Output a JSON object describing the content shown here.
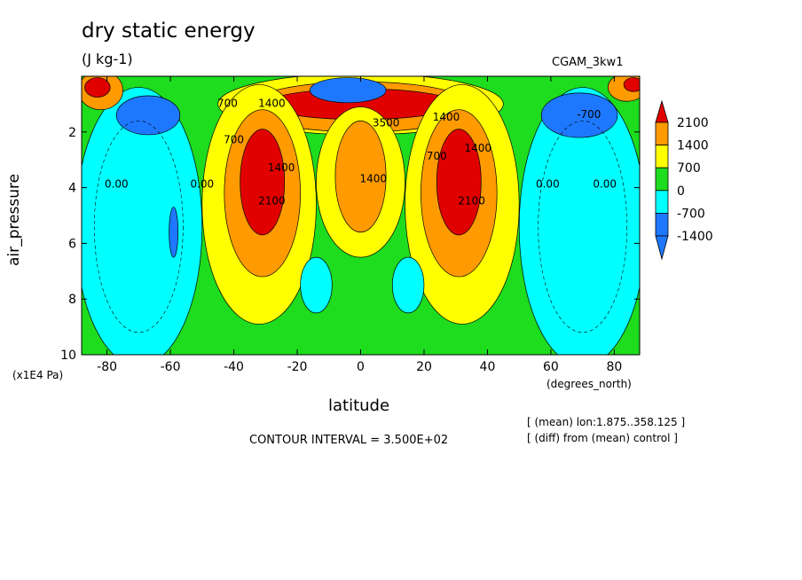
{
  "header": {
    "title": "dry static energy",
    "units": "(J kg-1)",
    "run_id": "CGAM_3kw1"
  },
  "footer": {
    "contour_interval": "CONTOUR INTERVAL = 3.500E+02",
    "note_mean": "[ (mean) lon:1.875..358.125 ]",
    "note_diff": "[ (diff) from (mean) control ]"
  },
  "axes": {
    "x_label": "latitude",
    "x_units": "(degrees_north)",
    "y_label": "air_pressure",
    "y_scale": "(x1E4 Pa)"
  },
  "colors": {
    "below_-1400": "#1e78ff",
    "-1400_-700": "#1e78ff",
    "-700_0": "#00ffff",
    "0_700": "#1edc1e",
    "700_1400": "#ffff00",
    "1400_2100": "#ff9a00",
    "above_2100": "#e10000"
  },
  "chart_data": {
    "type": "heatmap",
    "title": "dry static energy",
    "subtitle": "(J kg-1)",
    "xlabel": "latitude",
    "ylabel": "air_pressure",
    "xlim": [
      -88,
      88
    ],
    "ylim": [
      0,
      10
    ],
    "y_inverted": true,
    "x_ticks": [
      -80,
      -60,
      -40,
      -20,
      0,
      20,
      40,
      60,
      80
    ],
    "y_ticks": [
      2,
      4,
      6,
      8,
      10
    ],
    "colorbar": {
      "levels": [
        -1400,
        -700,
        0,
        700,
        1400,
        2100
      ],
      "labels": [
        "2100",
        "1400",
        "700",
        "0",
        "-700",
        "-1400"
      ],
      "colors": [
        "#1e78ff",
        "#00ffff",
        "#1edc1e",
        "#ffff00",
        "#ff9a00"
      ],
      "extend_low": "#1e78ff",
      "extend_high": "#e10000"
    },
    "contour_labels": [
      {
        "text": "700",
        "x": -42,
        "y": 1.1
      },
      {
        "text": "1400",
        "x": -28,
        "y": 1.1
      },
      {
        "text": "3500",
        "x": 8,
        "y": 1.8
      },
      {
        "text": "1400",
        "x": 27,
        "y": 1.6
      },
      {
        "text": "1400",
        "x": 37,
        "y": 2.7
      },
      {
        "text": "700",
        "x": -40,
        "y": 2.4
      },
      {
        "text": "1400",
        "x": -25,
        "y": 3.4
      },
      {
        "text": "2100",
        "x": -28,
        "y": 4.6
      },
      {
        "text": "1400",
        "x": 4,
        "y": 3.8
      },
      {
        "text": "700",
        "x": 24,
        "y": 3.0
      },
      {
        "text": "2100",
        "x": 35,
        "y": 4.6
      },
      {
        "text": "-700",
        "x": 72,
        "y": 1.5
      },
      {
        "text": "0.00",
        "x": -77,
        "y": 4.0
      },
      {
        "text": "0.00",
        "x": -50,
        "y": 4.0
      },
      {
        "text": "0.00",
        "x": 59,
        "y": 4.0
      },
      {
        "text": "0.00",
        "x": 77,
        "y": 4.0
      }
    ],
    "regions": [
      {
        "level": "700_1400",
        "cx": 0,
        "cy": 1.0,
        "rx": 45,
        "ry": 1.1
      },
      {
        "level": "1400_2100",
        "cx": 0,
        "cy": 1.1,
        "rx": 36,
        "ry": 0.9
      },
      {
        "level": "above_2100",
        "cx": 0,
        "cy": 1.0,
        "rx": 30,
        "ry": 0.55
      },
      {
        "level": "below_-1400",
        "cx": -4,
        "cy": 0.5,
        "rx": 12,
        "ry": 0.45
      },
      {
        "level": "700_1400",
        "cx": -32,
        "cy": 4.6,
        "rx": 18,
        "ry": 4.3
      },
      {
        "level": "1400_2100",
        "cx": -31,
        "cy": 4.2,
        "rx": 12,
        "ry": 3.0
      },
      {
        "level": "above_2100",
        "cx": -31,
        "cy": 3.8,
        "rx": 7,
        "ry": 1.9
      },
      {
        "level": "700_1400",
        "cx": 32,
        "cy": 4.6,
        "rx": 18,
        "ry": 4.3
      },
      {
        "level": "1400_2100",
        "cx": 31,
        "cy": 4.2,
        "rx": 12,
        "ry": 3.0
      },
      {
        "level": "above_2100",
        "cx": 31,
        "cy": 3.8,
        "rx": 7,
        "ry": 1.9
      },
      {
        "level": "700_1400",
        "cx": 0,
        "cy": 3.8,
        "rx": 14,
        "ry": 2.7
      },
      {
        "level": "1400_2100",
        "cx": 0,
        "cy": 3.6,
        "rx": 8,
        "ry": 2.0
      },
      {
        "level": "-700_0",
        "cx": -70,
        "cy": 5.4,
        "rx": 20,
        "ry": 5.0
      },
      {
        "level": "-700_0",
        "cx": 70,
        "cy": 5.4,
        "rx": 20,
        "ry": 5.0
      },
      {
        "level": "-1400_-700",
        "cx": -67,
        "cy": 1.4,
        "rx": 10,
        "ry": 0.7
      },
      {
        "level": "-1400_-700",
        "cx": 69,
        "cy": 1.4,
        "rx": 12,
        "ry": 0.8
      },
      {
        "level": "-1400_-700",
        "cx": -59,
        "cy": 5.6,
        "rx": 1.4,
        "ry": 0.9
      },
      {
        "level": "-700_0",
        "cx": -14,
        "cy": 7.5,
        "rx": 5,
        "ry": 1.0
      },
      {
        "level": "-700_0",
        "cx": 15,
        "cy": 7.5,
        "rx": 5,
        "ry": 1.0
      },
      {
        "level": "1400_2100",
        "cx": -82,
        "cy": 0.5,
        "rx": 7,
        "ry": 0.7
      },
      {
        "level": "above_2100",
        "cx": -83,
        "cy": 0.4,
        "rx": 4,
        "ry": 0.35
      },
      {
        "level": "1400_2100",
        "cx": 84,
        "cy": 0.4,
        "rx": 6,
        "ry": 0.5
      },
      {
        "level": "above_2100",
        "cx": 86,
        "cy": 0.3,
        "rx": 3,
        "ry": 0.25
      }
    ]
  }
}
